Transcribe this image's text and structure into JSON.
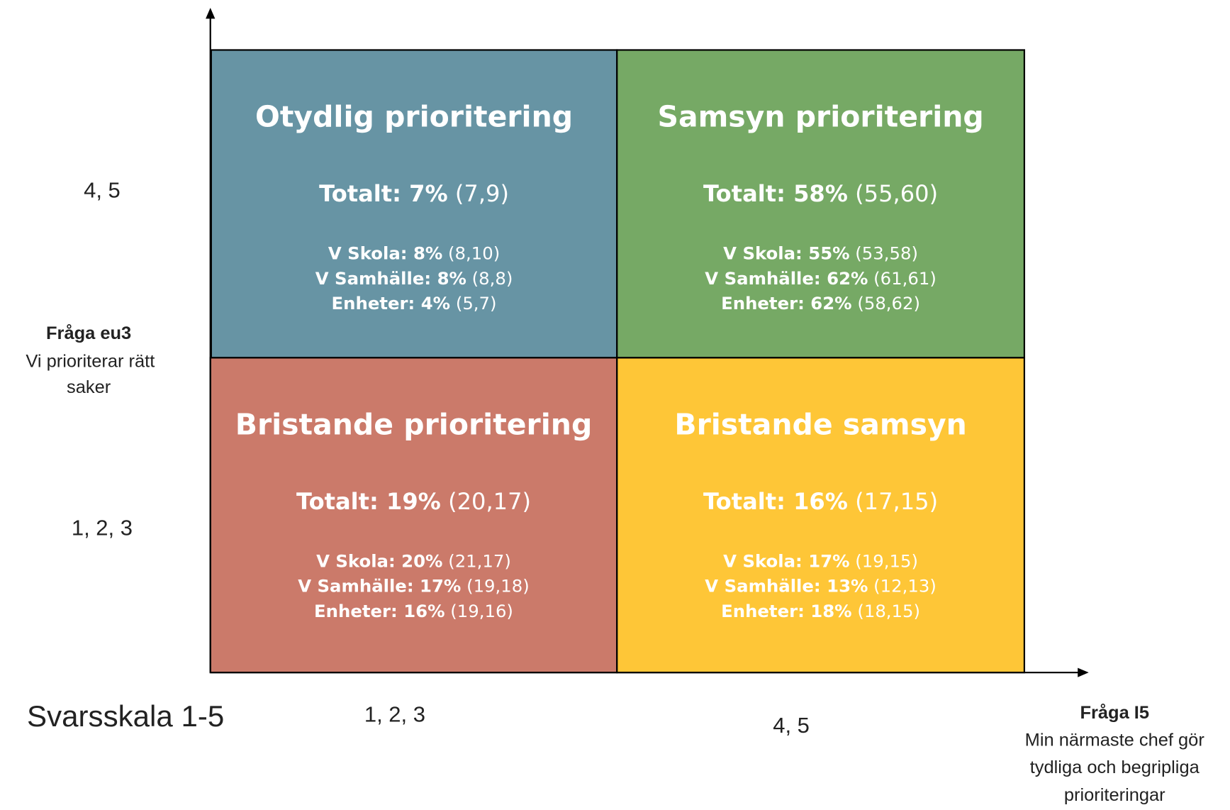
{
  "axis_note": "Svarsskala 1-5",
  "y_axis": {
    "question": "Fråga eu3",
    "text_lines": [
      "Vi prioriterar rätt",
      "saker"
    ],
    "high": "4, 5",
    "low": "1, 2, 3"
  },
  "x_axis": {
    "question": "Fråga I5",
    "text_lines": [
      "Min närmaste chef gör",
      "tydliga och begripliga",
      "prioriteringar"
    ],
    "low": "1, 2, 3",
    "high": "4, 5"
  },
  "quadrants": [
    {
      "title": "Otydlig prioritering",
      "color": "#6794a4",
      "total": {
        "lead": "Totalt: 7%",
        "range": "(7,9)"
      },
      "rows": [
        {
          "lead": "V Skola: 8%",
          "range": "(8,10)"
        },
        {
          "lead": "V Samhälle: 8%",
          "range": "(8,8)"
        },
        {
          "lead": "Enheter: 4%",
          "range": "(5,7)"
        }
      ]
    },
    {
      "title": "Samsyn prioritering",
      "color": "#76a965",
      "total": {
        "lead": "Totalt: 58%",
        "range": "(55,60)"
      },
      "rows": [
        {
          "lead": "V Skola: 55%",
          "range": "(53,58)"
        },
        {
          "lead": "V Samhälle: 62%",
          "range": "(61,61)"
        },
        {
          "lead": "Enheter: 62%",
          "range": "(58,62)"
        }
      ]
    },
    {
      "title": "Bristande prioritering",
      "color": "#cb7a6a",
      "total": {
        "lead": "Totalt: 19%",
        "range": "(20,17)"
      },
      "rows": [
        {
          "lead": "V Skola: 20%",
          "range": "(21,17)"
        },
        {
          "lead": "V Samhälle: 17%",
          "range": "(19,18)"
        },
        {
          "lead": "Enheter: 16%",
          "range": "(19,16)"
        }
      ]
    },
    {
      "title": "Bristande samsyn",
      "color": "#fec637",
      "total": {
        "lead": "Totalt: 16%",
        "range": "(17,15)"
      },
      "rows": [
        {
          "lead": "V Skola: 17%",
          "range": "(19,15)"
        },
        {
          "lead": "V Samhälle: 13%",
          "range": "(12,13)"
        },
        {
          "lead": "Enheter: 18%",
          "range": "(18,15)"
        }
      ]
    }
  ]
}
